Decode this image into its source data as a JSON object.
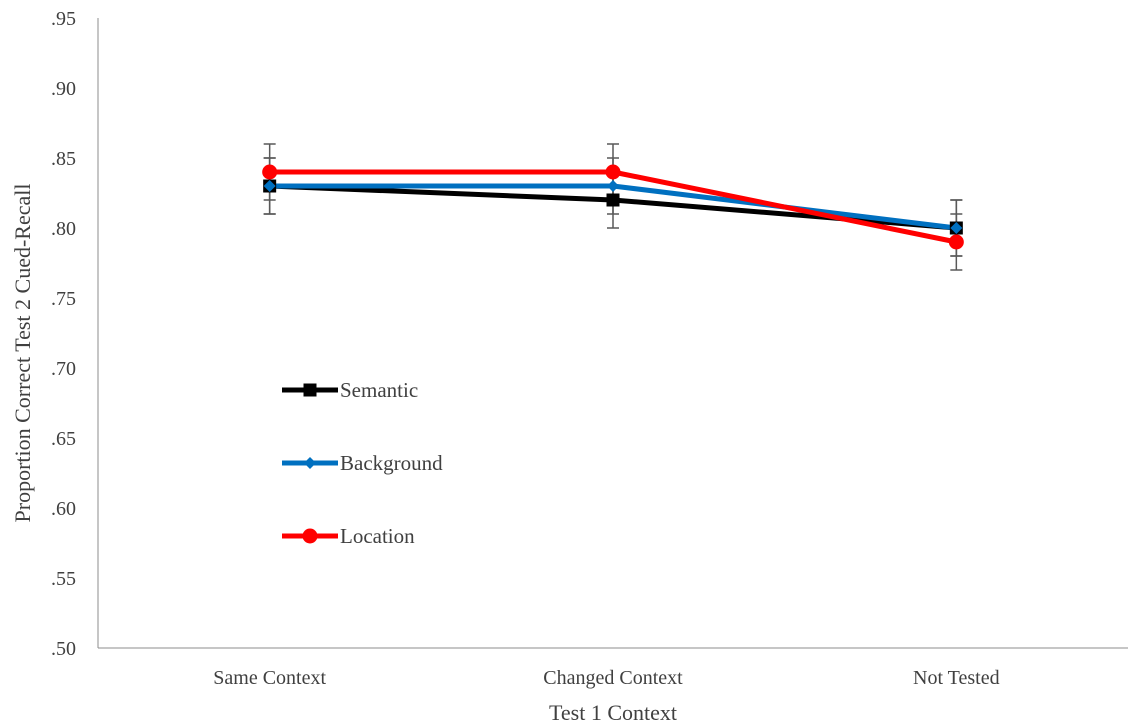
{
  "chart_data": {
    "type": "line",
    "title": "",
    "xlabel": "Test 1 Context",
    "ylabel": "Proportion Correct Test 2 Cued-Recall",
    "categories": [
      "Same Context",
      "Changed Context",
      "Not Tested"
    ],
    "ylim": [
      0.5,
      0.95
    ],
    "yticks": [
      0.5,
      0.55,
      0.6,
      0.65,
      0.7,
      0.75,
      0.8,
      0.85,
      0.9,
      0.95
    ],
    "ytick_labels": [
      ".50",
      ".55",
      ".60",
      ".65",
      ".70",
      ".75",
      ".80",
      ".85",
      ".90",
      ".95"
    ],
    "grid": false,
    "legend_position": "left-inside",
    "series": [
      {
        "name": "Semantic",
        "values": [
          0.83,
          0.82,
          0.8
        ],
        "error": [
          0.02,
          0.02,
          0.02
        ],
        "color": "#000000",
        "marker": "square"
      },
      {
        "name": "Background",
        "values": [
          0.83,
          0.83,
          0.8
        ],
        "error": [
          0.02,
          0.02,
          0.02
        ],
        "color": "#0070C0",
        "marker": "diamond"
      },
      {
        "name": "Location",
        "values": [
          0.84,
          0.84,
          0.79
        ],
        "error": [
          0.02,
          0.02,
          0.02
        ],
        "color": "#FF0000",
        "marker": "circle"
      }
    ]
  }
}
